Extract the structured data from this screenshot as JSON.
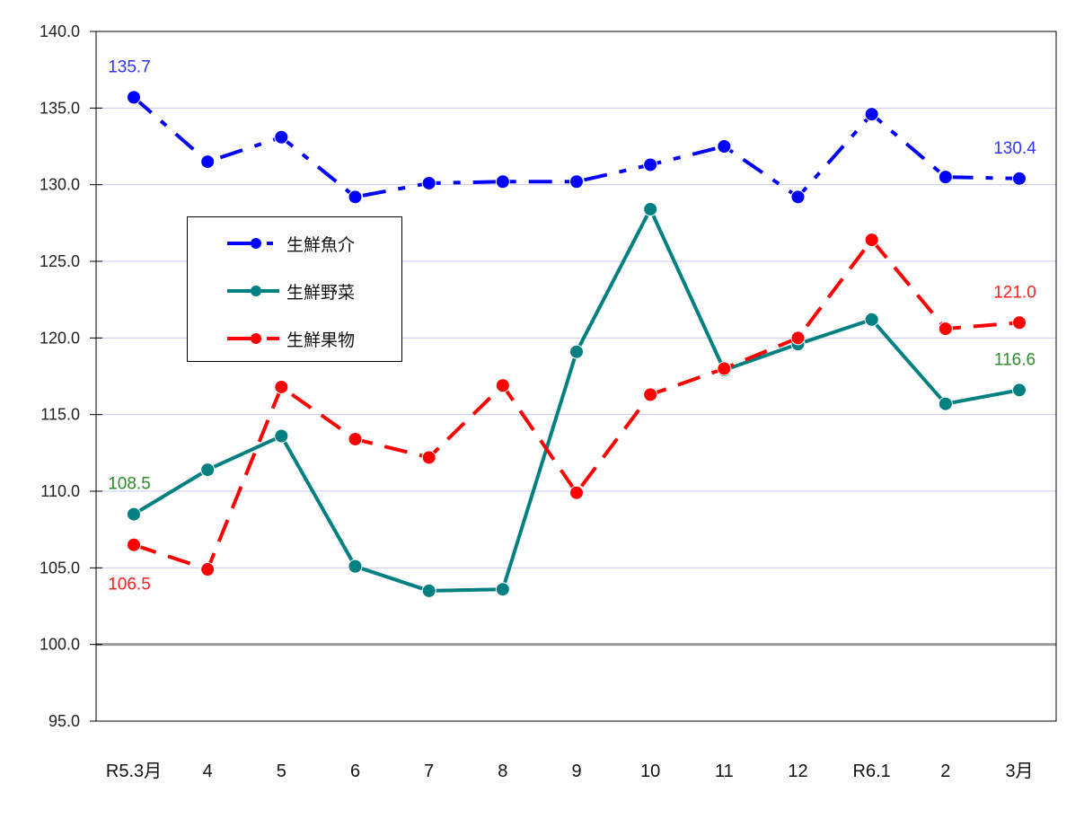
{
  "chart_data": {
    "type": "line",
    "title": "",
    "xlabel": "",
    "ylabel": "",
    "ylim": [
      95.0,
      140.0
    ],
    "yticks": [
      "140.0",
      "135.0",
      "130.0",
      "125.0",
      "120.0",
      "115.0",
      "110.0",
      "105.0",
      "100.0",
      "95.0"
    ],
    "categories": [
      "R5.3月",
      "4",
      "5",
      "6",
      "7",
      "8",
      "9",
      "10",
      "11",
      "12",
      "R6.1",
      "2",
      "3月"
    ],
    "grid": true,
    "reference_line": 100.0,
    "legend_position": "upper-left inside",
    "series": [
      {
        "name": "生鮮魚介",
        "color": "#0000ff",
        "dash": "dash-dot",
        "values": [
          135.7,
          131.5,
          133.1,
          129.2,
          130.1,
          130.2,
          130.2,
          131.3,
          132.5,
          129.2,
          134.6,
          130.5,
          130.4
        ]
      },
      {
        "name": "生鮮野菜",
        "color": "#008080",
        "dash": "solid",
        "values": [
          108.5,
          111.4,
          113.6,
          105.1,
          103.5,
          103.6,
          119.1,
          128.4,
          117.9,
          119.6,
          121.2,
          115.7,
          116.6
        ]
      },
      {
        "name": "生鮮果物",
        "color": "#ff0000",
        "dash": "dashed",
        "values": [
          106.5,
          104.9,
          116.8,
          113.4,
          112.2,
          116.9,
          109.9,
          116.3,
          118.0,
          120.0,
          126.4,
          120.6,
          121.0
        ]
      }
    ],
    "annotations": [
      {
        "series": "生鮮魚介",
        "index": 0,
        "text": "135.7",
        "color": "#3333ff",
        "pos": "above"
      },
      {
        "series": "生鮮魚介",
        "index": 12,
        "text": "130.4",
        "color": "#3333ff",
        "pos": "above"
      },
      {
        "series": "生鮮野菜",
        "index": 0,
        "text": "108.5",
        "color": "#2e8b2e",
        "pos": "above"
      },
      {
        "series": "生鮮野菜",
        "index": 12,
        "text": "116.6",
        "color": "#2e8b2e",
        "pos": "above"
      },
      {
        "series": "生鮮果物",
        "index": 0,
        "text": "106.5",
        "color": "#ff2020",
        "pos": "below"
      },
      {
        "series": "生鮮果物",
        "index": 12,
        "text": "121.0",
        "color": "#ff2020",
        "pos": "above"
      }
    ]
  },
  "legend": {
    "items": [
      {
        "label": "生鮮魚介",
        "color": "#0000ff"
      },
      {
        "label": "生鮮野菜",
        "color": "#008080"
      },
      {
        "label": "生鮮果物",
        "color": "#ff0000"
      }
    ]
  }
}
